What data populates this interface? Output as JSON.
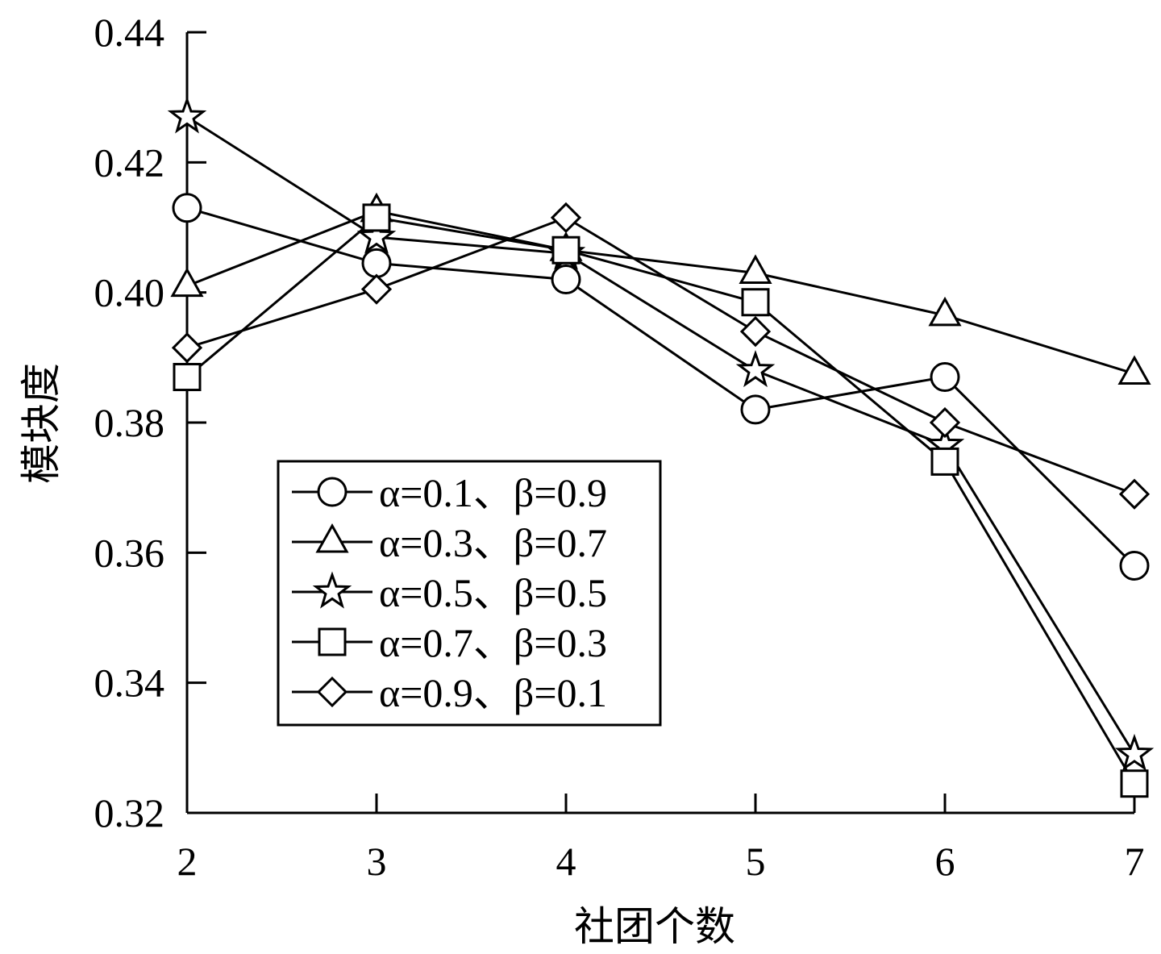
{
  "chart_data": {
    "type": "line",
    "xlabel": "社团个数",
    "ylabel": "模块度",
    "x": [
      2,
      3,
      4,
      5,
      6,
      7
    ],
    "xlim": [
      2,
      7
    ],
    "ylim": [
      0.32,
      0.44
    ],
    "xticks": [
      "2",
      "3",
      "4",
      "5",
      "6",
      "7"
    ],
    "yticks": [
      "0.32",
      "0.34",
      "0.36",
      "0.38",
      "0.40",
      "0.42",
      "0.44"
    ],
    "grid": false,
    "legend_position": "bottom-left",
    "series": [
      {
        "name": "α=0.1、β=0.9",
        "marker": "circle",
        "values": [
          0.413,
          0.4045,
          0.402,
          0.382,
          0.387,
          0.358
        ]
      },
      {
        "name": "α=0.3、β=0.7",
        "marker": "triangle",
        "values": [
          0.401,
          0.4125,
          0.4065,
          0.403,
          0.3965,
          0.3875
        ]
      },
      {
        "name": "α=0.5、β=0.5",
        "marker": "star",
        "values": [
          0.427,
          0.4085,
          0.406,
          0.388,
          0.3765,
          0.329
        ]
      },
      {
        "name": "α=0.7、β=0.3",
        "marker": "square",
        "values": [
          0.387,
          0.4115,
          0.4065,
          0.3985,
          0.374,
          0.3245
        ]
      },
      {
        "name": "α=0.9、β=0.1",
        "marker": "diamond",
        "values": [
          0.3915,
          0.4005,
          0.4115,
          0.394,
          0.38,
          0.369
        ]
      }
    ]
  }
}
